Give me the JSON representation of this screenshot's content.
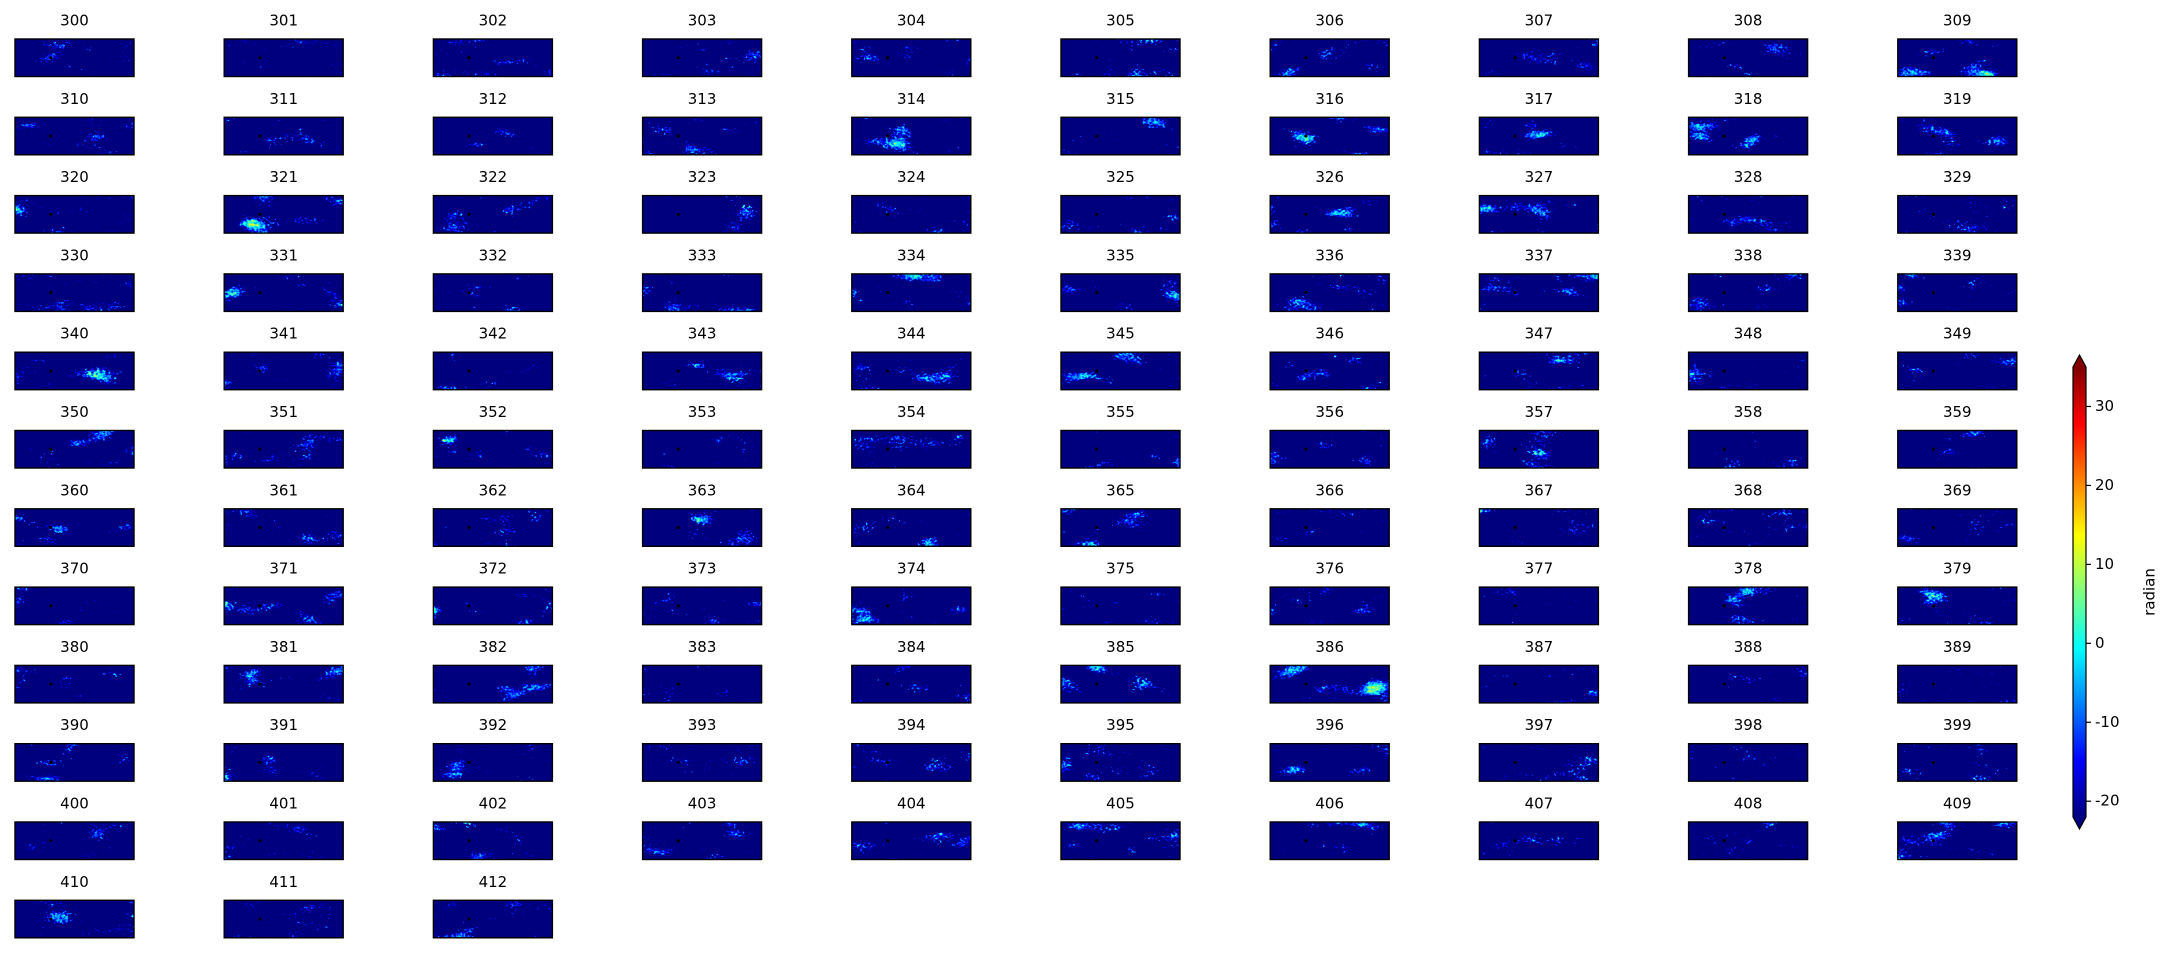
{
  "chart_data": {
    "type": "heatmap-grid",
    "panels": [
      "300",
      "301",
      "302",
      "303",
      "304",
      "305",
      "306",
      "307",
      "308",
      "309",
      "310",
      "311",
      "312",
      "313",
      "314",
      "315",
      "316",
      "317",
      "318",
      "319",
      "320",
      "321",
      "322",
      "323",
      "324",
      "325",
      "326",
      "327",
      "328",
      "329",
      "330",
      "331",
      "332",
      "333",
      "334",
      "335",
      "336",
      "337",
      "338",
      "339",
      "340",
      "341",
      "342",
      "343",
      "344",
      "345",
      "346",
      "347",
      "348",
      "349",
      "350",
      "351",
      "352",
      "353",
      "354",
      "355",
      "356",
      "357",
      "358",
      "359",
      "360",
      "361",
      "362",
      "363",
      "364",
      "365",
      "366",
      "367",
      "368",
      "369",
      "370",
      "371",
      "372",
      "373",
      "374",
      "375",
      "376",
      "377",
      "378",
      "379",
      "380",
      "381",
      "382",
      "383",
      "384",
      "385",
      "386",
      "387",
      "388",
      "389",
      "390",
      "391",
      "392",
      "393",
      "394",
      "395",
      "396",
      "397",
      "398",
      "399",
      "400",
      "401",
      "402",
      "403",
      "404",
      "405",
      "406",
      "407",
      "408",
      "409",
      "410",
      "411",
      "412"
    ],
    "colormap": "jet",
    "colorbar": {
      "label": "radian",
      "lim": [
        -22,
        35
      ],
      "ticks": [
        -20,
        -10,
        0,
        10,
        20,
        30
      ],
      "extend": "both"
    }
  }
}
